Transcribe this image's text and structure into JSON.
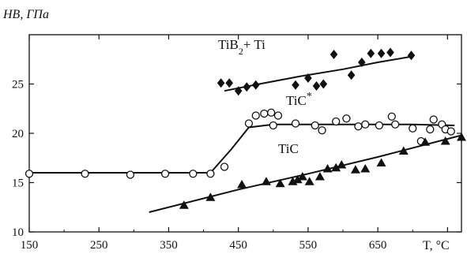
{
  "chart_data": {
    "type": "scatter",
    "ylabel": "HB, ГПа",
    "xlabel": "T, °C",
    "xlim": [
      150,
      770
    ],
    "ylim": [
      10,
      30
    ],
    "x_ticks": [
      150,
      250,
      350,
      450,
      550,
      650,
      750
    ],
    "x_tick_labels": [
      "150",
      "250",
      "350",
      "450",
      "550",
      "650",
      ""
    ],
    "y_ticks": [
      10,
      15,
      20,
      25
    ],
    "y_tick_labels": [
      "10",
      "15",
      "20",
      "25"
    ],
    "grid": false,
    "series": [
      {
        "name": "TiB2+ Ti",
        "marker": "diamond",
        "points": [
          [
            425,
            25.1
          ],
          [
            437,
            25.1
          ],
          [
            450,
            24.3
          ],
          [
            462,
            24.7
          ],
          [
            475,
            24.9
          ],
          [
            532,
            24.9
          ],
          [
            550,
            25.6
          ],
          [
            562,
            24.8
          ],
          [
            572,
            25.0
          ],
          [
            587,
            28.0
          ],
          [
            612,
            25.9
          ],
          [
            627,
            27.2
          ],
          [
            640,
            28.1
          ],
          [
            655,
            28.1
          ],
          [
            668,
            28.2
          ],
          [
            698,
            27.9
          ]
        ],
        "trend": [
          [
            430,
            24.3
          ],
          [
            480,
            25.0
          ],
          [
            540,
            25.8
          ],
          [
            600,
            26.5
          ],
          [
            650,
            27.2
          ],
          [
            700,
            27.8
          ]
        ]
      },
      {
        "name": "TiC*",
        "marker": "open-circle",
        "points": [
          [
            150,
            15.9
          ],
          [
            230,
            15.9
          ],
          [
            295,
            15.8
          ],
          [
            345,
            15.9
          ],
          [
            385,
            15.9
          ],
          [
            410,
            15.9
          ],
          [
            430,
            16.6
          ],
          [
            465,
            21.0
          ],
          [
            475,
            21.8
          ],
          [
            487,
            22.0
          ],
          [
            497,
            22.1
          ],
          [
            507,
            21.8
          ],
          [
            500,
            20.8
          ],
          [
            532,
            21.0
          ],
          [
            560,
            20.8
          ],
          [
            570,
            20.3
          ],
          [
            590,
            21.2
          ],
          [
            605,
            21.5
          ],
          [
            622,
            20.7
          ],
          [
            632,
            20.9
          ],
          [
            652,
            20.8
          ],
          [
            670,
            21.7
          ],
          [
            675,
            20.9
          ],
          [
            700,
            20.5
          ],
          [
            712,
            19.2
          ],
          [
            725,
            20.4
          ],
          [
            730,
            21.4
          ],
          [
            742,
            20.9
          ],
          [
            747,
            20.4
          ],
          [
            755,
            20.2
          ]
        ],
        "trend": [
          [
            150,
            16.0
          ],
          [
            410,
            16.0
          ],
          [
            440,
            18.4
          ],
          [
            465,
            20.6
          ],
          [
            500,
            20.9
          ],
          [
            600,
            20.9
          ],
          [
            700,
            20.9
          ],
          [
            760,
            20.8
          ]
        ]
      },
      {
        "name": "TiC",
        "marker": "filled-triangle",
        "points": [
          [
            372,
            12.7
          ],
          [
            410,
            13.5
          ],
          [
            455,
            14.8
          ],
          [
            490,
            15.1
          ],
          [
            510,
            14.9
          ],
          [
            528,
            15.1
          ],
          [
            535,
            15.3
          ],
          [
            542,
            15.6
          ],
          [
            552,
            15.1
          ],
          [
            567,
            15.6
          ],
          [
            578,
            16.4
          ],
          [
            590,
            16.5
          ],
          [
            598,
            16.8
          ],
          [
            618,
            16.3
          ],
          [
            632,
            16.4
          ],
          [
            655,
            17.0
          ],
          [
            687,
            18.2
          ],
          [
            718,
            19.1
          ],
          [
            747,
            19.2
          ],
          [
            770,
            19.6
          ]
        ],
        "trend": [
          [
            322,
            12.0
          ],
          [
            450,
            14.3
          ],
          [
            550,
            15.9
          ],
          [
            650,
            17.6
          ],
          [
            770,
            19.8
          ]
        ]
      }
    ]
  }
}
